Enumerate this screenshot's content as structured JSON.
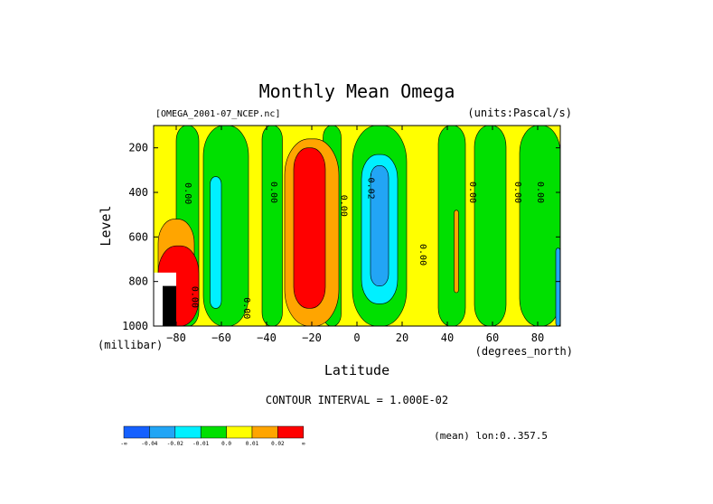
{
  "chart_data": {
    "type": "heatmap",
    "title": "Monthly Mean Omega",
    "dataset": "[OMEGA_2001-07_NCEP.nc]",
    "units_label": "(units:Pascal/s)",
    "xlabel": "Latitude",
    "x_units": "(degrees_north)",
    "ylabel": "Level",
    "y_units": "(millibar)",
    "xlim": [
      -90,
      90
    ],
    "ylim": [
      1000,
      100
    ],
    "x_ticks": [
      -80,
      -60,
      -40,
      -20,
      0,
      20,
      40,
      60,
      80
    ],
    "y_ticks": [
      200,
      400,
      600,
      800,
      1000
    ],
    "contour_interval": "CONTOUR INTERVAL = 1.000E-02",
    "footer": "(mean) lon:0..357.5",
    "colorbar": {
      "colors": [
        "#1560ff",
        "#22a5f5",
        "#00f0ff",
        "#00e000",
        "#ffff00",
        "#ffa500",
        "#ff0000"
      ],
      "labels": [
        "-∞",
        "-0.04",
        "-0.02",
        "-0.01",
        "0.0",
        "0.01",
        "0.02",
        "∞"
      ]
    },
    "contour_labels": [
      {
        "text": "0.00",
        "lat": -76,
        "lev": 405
      },
      {
        "text": "0.00",
        "lat": -38,
        "lev": 400
      },
      {
        "text": "0.00",
        "lat": -7,
        "lev": 460
      },
      {
        "text": "-0.02",
        "lat": 5,
        "lev": 370
      },
      {
        "text": "0.00",
        "lat": 50,
        "lev": 400
      },
      {
        "text": "0.00",
        "lat": 70,
        "lev": 400
      },
      {
        "text": "0.00",
        "lat": 80,
        "lev": 400
      },
      {
        "text": "0.00",
        "lat": 28,
        "lev": 680
      },
      {
        "text": "0.00",
        "lat": -50,
        "lev": 920
      },
      {
        "text": "0.00",
        "lat": -73,
        "lev": 870
      }
    ],
    "bands": [
      {
        "category": "0.0",
        "lat": [
          -90,
          90
        ],
        "lev": [
          100,
          1000
        ]
      },
      {
        "category": "-0.01",
        "lat": [
          -80,
          -70
        ],
        "lev": [
          100,
          1000
        ]
      },
      {
        "category": "-0.01",
        "lat": [
          -68,
          -48
        ],
        "lev": [
          100,
          1000
        ]
      },
      {
        "category": "-0.01",
        "lat": [
          -42,
          -33
        ],
        "lev": [
          100,
          1000
        ]
      },
      {
        "category": "-0.01",
        "lat": [
          -15,
          -7
        ],
        "lev": [
          100,
          1000
        ]
      },
      {
        "category": "-0.01",
        "lat": [
          -2,
          22
        ],
        "lev": [
          100,
          1000
        ]
      },
      {
        "category": "-0.01",
        "lat": [
          36,
          48
        ],
        "lev": [
          100,
          1000
        ]
      },
      {
        "category": "-0.01",
        "lat": [
          52,
          66
        ],
        "lev": [
          100,
          1000
        ]
      },
      {
        "category": "-0.01",
        "lat": [
          72,
          90
        ],
        "lev": [
          100,
          1000
        ]
      },
      {
        "category": "0.01",
        "lat": [
          -32,
          -8
        ],
        "lev": [
          160,
          1000
        ]
      },
      {
        "category": "0.02",
        "lat": [
          -28,
          -14
        ],
        "lev": [
          200,
          920
        ]
      },
      {
        "category": "-0.02",
        "lat": [
          -65,
          -60
        ],
        "lev": [
          330,
          920
        ]
      },
      {
        "category": "-0.02",
        "lat": [
          2,
          18
        ],
        "lev": [
          230,
          900
        ]
      },
      {
        "category": "-0.04",
        "lat": [
          6,
          14
        ],
        "lev": [
          280,
          820
        ]
      },
      {
        "category": "0.01",
        "lat": [
          -88,
          -72
        ],
        "lev": [
          520,
          1000
        ]
      },
      {
        "category": "0.02",
        "lat": [
          -88,
          -70
        ],
        "lev": [
          640,
          1000
        ]
      },
      {
        "category": "0.01",
        "lat": [
          43,
          45
        ],
        "lev": [
          480,
          850
        ]
      },
      {
        "category": "-0.04",
        "lat": [
          88,
          90
        ],
        "lev": [
          650,
          1000
        ]
      }
    ],
    "missing_region": {
      "lat": [
        -90,
        -80
      ],
      "lev": [
        760,
        1000
      ]
    }
  }
}
